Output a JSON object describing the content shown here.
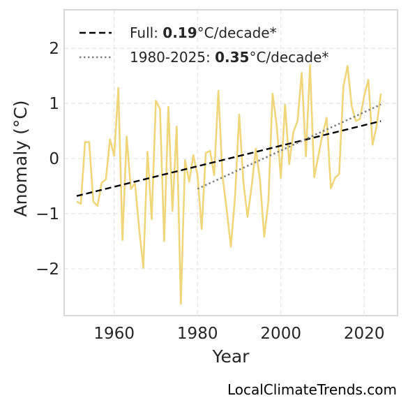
{
  "chart_data": {
    "type": "line",
    "xlabel": "Year",
    "ylabel": "Anomaly (°C)",
    "xlim": [
      1948,
      2028
    ],
    "ylim": [
      -2.85,
      2.7
    ],
    "xticks": [
      1960,
      1980,
      2000,
      2020
    ],
    "xtick_labels": [
      "1960",
      "1980",
      "2000",
      "2020"
    ],
    "yticks": [
      2,
      1,
      0,
      -1,
      -2
    ],
    "ytick_labels": [
      "2",
      "1",
      "0",
      "−1",
      "−2"
    ],
    "grid": true,
    "legend_position": "top-left",
    "series": [
      {
        "color": "#f0d67a",
        "style": "solid",
        "x": [
          1951,
          1952,
          1953,
          1954,
          1955,
          1956,
          1957,
          1958,
          1959,
          1960,
          1961,
          1962,
          1963,
          1964,
          1965,
          1966,
          1967,
          1968,
          1969,
          1970,
          1971,
          1972,
          1973,
          1974,
          1975,
          1976,
          1977,
          1978,
          1979,
          1980,
          1981,
          1982,
          1983,
          1984,
          1985,
          1986,
          1987,
          1988,
          1989,
          1990,
          1991,
          1992,
          1993,
          1994,
          1995,
          1996,
          1997,
          1998,
          1999,
          2000,
          2001,
          2002,
          2003,
          2004,
          2005,
          2006,
          2007,
          2008,
          2009,
          2010,
          2011,
          2012,
          2013,
          2014,
          2015,
          2016,
          2017,
          2018,
          2019,
          2020,
          2021,
          2022,
          2023,
          2024
        ],
        "y": [
          -0.78,
          -0.82,
          0.3,
          0.3,
          -0.78,
          -0.86,
          -0.44,
          -0.38,
          0.35,
          0.05,
          1.28,
          -1.48,
          0.4,
          -0.55,
          -0.45,
          -1.28,
          -1.98,
          0.12,
          -1.1,
          1.05,
          0.9,
          -1.5,
          0.94,
          -0.95,
          0.58,
          -2.64,
          -0.03,
          -0.42,
          0.06,
          -0.3,
          -1.28,
          0.1,
          0.14,
          -0.3,
          1.23,
          -0.32,
          -0.92,
          -1.6,
          -0.7,
          0.8,
          -0.42,
          -1.06,
          -0.5,
          0.18,
          -0.4,
          -1.42,
          -0.78,
          1.18,
          0.6,
          -0.35,
          0.98,
          -0.1,
          0.48,
          0.68,
          1.56,
          0.04,
          1.7,
          -0.34,
          0.05,
          0.44,
          0.74,
          -0.54,
          -0.35,
          -0.28,
          1.3,
          1.68,
          0.95,
          0.68,
          0.72,
          1.14,
          1.43,
          0.25,
          0.6,
          1.18
        ]
      },
      {
        "name": "Full: 0.19°C/decade*",
        "color": "#000000",
        "style": "dashed",
        "x": [
          1951,
          2024
        ],
        "y": [
          -0.68,
          0.68
        ]
      },
      {
        "name": "1980-2025: 0.35°C/decade*",
        "color": "#808080",
        "style": "dotted",
        "x": [
          1980,
          2024
        ],
        "y": [
          -0.55,
          0.98
        ]
      }
    ],
    "legend": [
      {
        "prefix": "Full: ",
        "value": "0.19",
        "suffix": "°C/decade*"
      },
      {
        "prefix": "1980-2025: ",
        "value": "0.35",
        "suffix": "°C/decade*"
      }
    ]
  },
  "credit": "LocalClimateTrends.com"
}
